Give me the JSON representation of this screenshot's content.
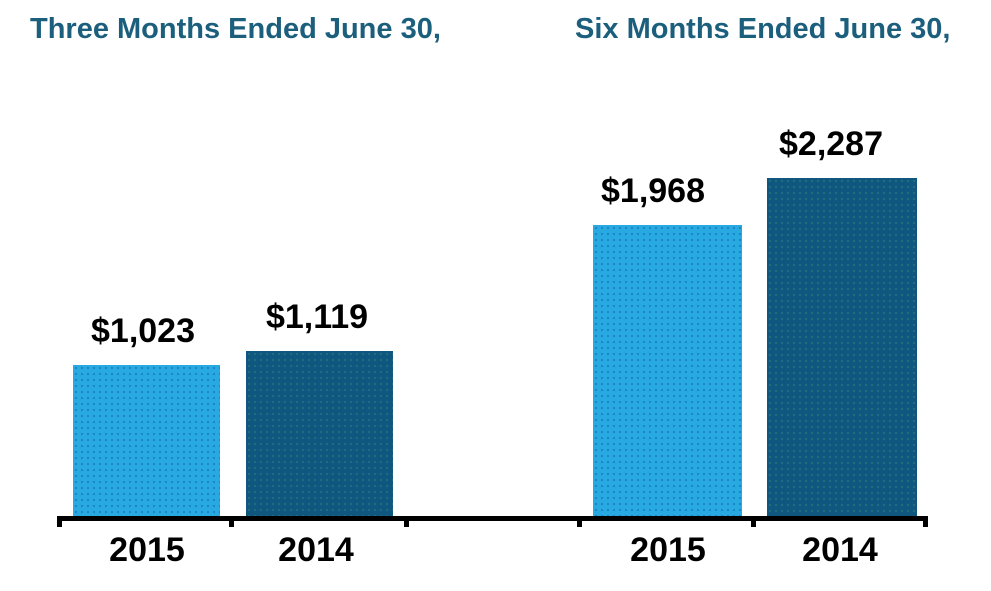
{
  "chart_data": {
    "type": "bar",
    "groups": [
      {
        "title": "Three Months Ended June 30,",
        "categories": [
          "2015",
          "2014"
        ],
        "values": [
          1023,
          1119
        ],
        "value_labels": [
          "$1,023",
          "$1,119"
        ]
      },
      {
        "title": "Six Months Ended June 30,",
        "categories": [
          "2015",
          "2014"
        ],
        "values": [
          1968,
          2287
        ],
        "value_labels": [
          "$1,968",
          "$2,287"
        ]
      }
    ],
    "series": [
      {
        "name": "2015",
        "color": "#29A9E1"
      },
      {
        "name": "2014",
        "color": "#0F577F"
      }
    ],
    "ylim": [
      0,
      2450
    ],
    "gridlines": false,
    "legend": "none",
    "y_axis": "hidden",
    "x_axis_baseline": true,
    "title_color": "#1B5F7D",
    "value_label_color": "#000000",
    "axis_color": "#000000"
  }
}
